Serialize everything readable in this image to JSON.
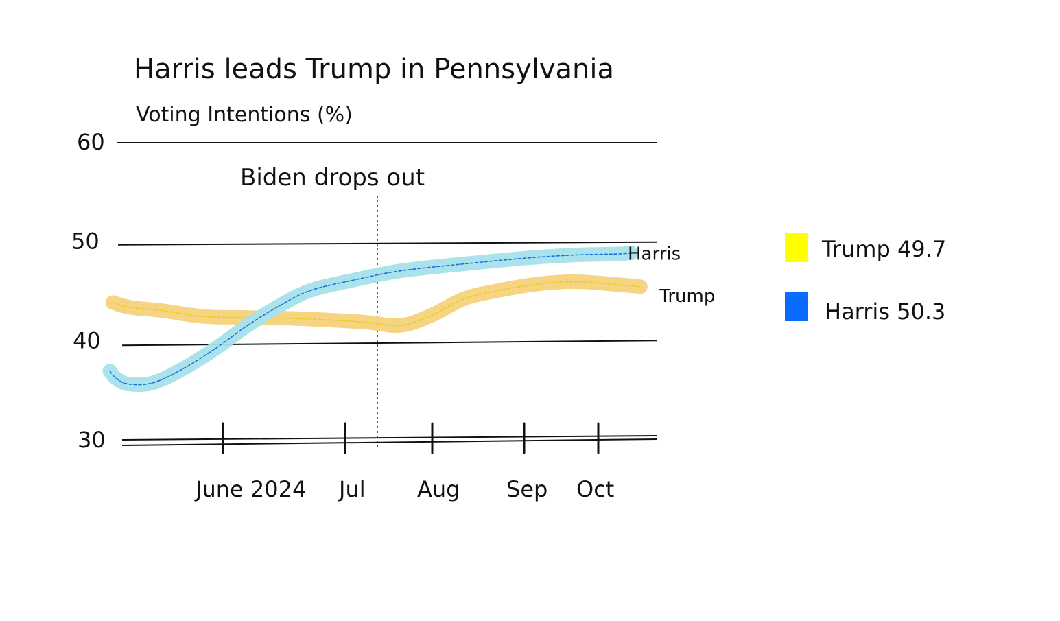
{
  "chart_data": {
    "type": "line",
    "title": "Harris leads Trump in Pennsylvania",
    "subtitle": "Voting Intentions (%)",
    "x_ticks": [
      "June 2024",
      "Jul",
      "Aug",
      "Sep",
      "Oct"
    ],
    "y_ticks": [
      "30",
      "40",
      "50",
      "60"
    ],
    "ylim": [
      30,
      60
    ],
    "grid": true,
    "annotation": {
      "text": "Biden drops out",
      "x": "2024-07-21"
    },
    "series": [
      {
        "name": "Trump",
        "color": "#f5d27a",
        "dash_color": "#e6cf2a",
        "points": [
          {
            "x": "2024-05-02",
            "y": 43.9
          },
          {
            "x": "2024-05-08",
            "y": 43.4
          },
          {
            "x": "2024-05-18",
            "y": 43.1
          },
          {
            "x": "2024-06-01",
            "y": 42.5
          },
          {
            "x": "2024-06-15",
            "y": 42.4
          },
          {
            "x": "2024-07-01",
            "y": 42.3
          },
          {
            "x": "2024-07-15",
            "y": 42.1
          },
          {
            "x": "2024-07-25",
            "y": 41.9
          },
          {
            "x": "2024-08-05",
            "y": 41.6
          },
          {
            "x": "2024-08-15",
            "y": 42.6
          },
          {
            "x": "2024-08-26",
            "y": 44.3
          },
          {
            "x": "2024-09-06",
            "y": 45.1
          },
          {
            "x": "2024-09-20",
            "y": 45.8
          },
          {
            "x": "2024-10-02",
            "y": 46.0
          },
          {
            "x": "2024-10-16",
            "y": 45.7
          },
          {
            "x": "2024-10-23",
            "y": 45.5
          }
        ]
      },
      {
        "name": "Harris",
        "color": "#a6e1ec",
        "dash_color": "#1a6fe0",
        "points": [
          {
            "x": "2024-05-01",
            "y": 37.0
          },
          {
            "x": "2024-05-03",
            "y": 36.3
          },
          {
            "x": "2024-05-07",
            "y": 35.7
          },
          {
            "x": "2024-05-15",
            "y": 35.8
          },
          {
            "x": "2024-05-25",
            "y": 37.2
          },
          {
            "x": "2024-06-05",
            "y": 39.3
          },
          {
            "x": "2024-06-15",
            "y": 41.5
          },
          {
            "x": "2024-06-25",
            "y": 43.4
          },
          {
            "x": "2024-07-06",
            "y": 45.1
          },
          {
            "x": "2024-07-21",
            "y": 46.2
          },
          {
            "x": "2024-08-05",
            "y": 47.1
          },
          {
            "x": "2024-08-26",
            "y": 47.8
          },
          {
            "x": "2024-09-16",
            "y": 48.4
          },
          {
            "x": "2024-10-02",
            "y": 48.7
          },
          {
            "x": "2024-10-16",
            "y": 48.8
          },
          {
            "x": "2024-10-20",
            "y": 48.9
          }
        ]
      }
    ],
    "legend": {
      "placement": "right",
      "items": [
        {
          "label": "Trump 49.7",
          "color": "#ffff00"
        },
        {
          "label": "Harris 50.3",
          "color": "#0a6cff"
        }
      ]
    }
  }
}
